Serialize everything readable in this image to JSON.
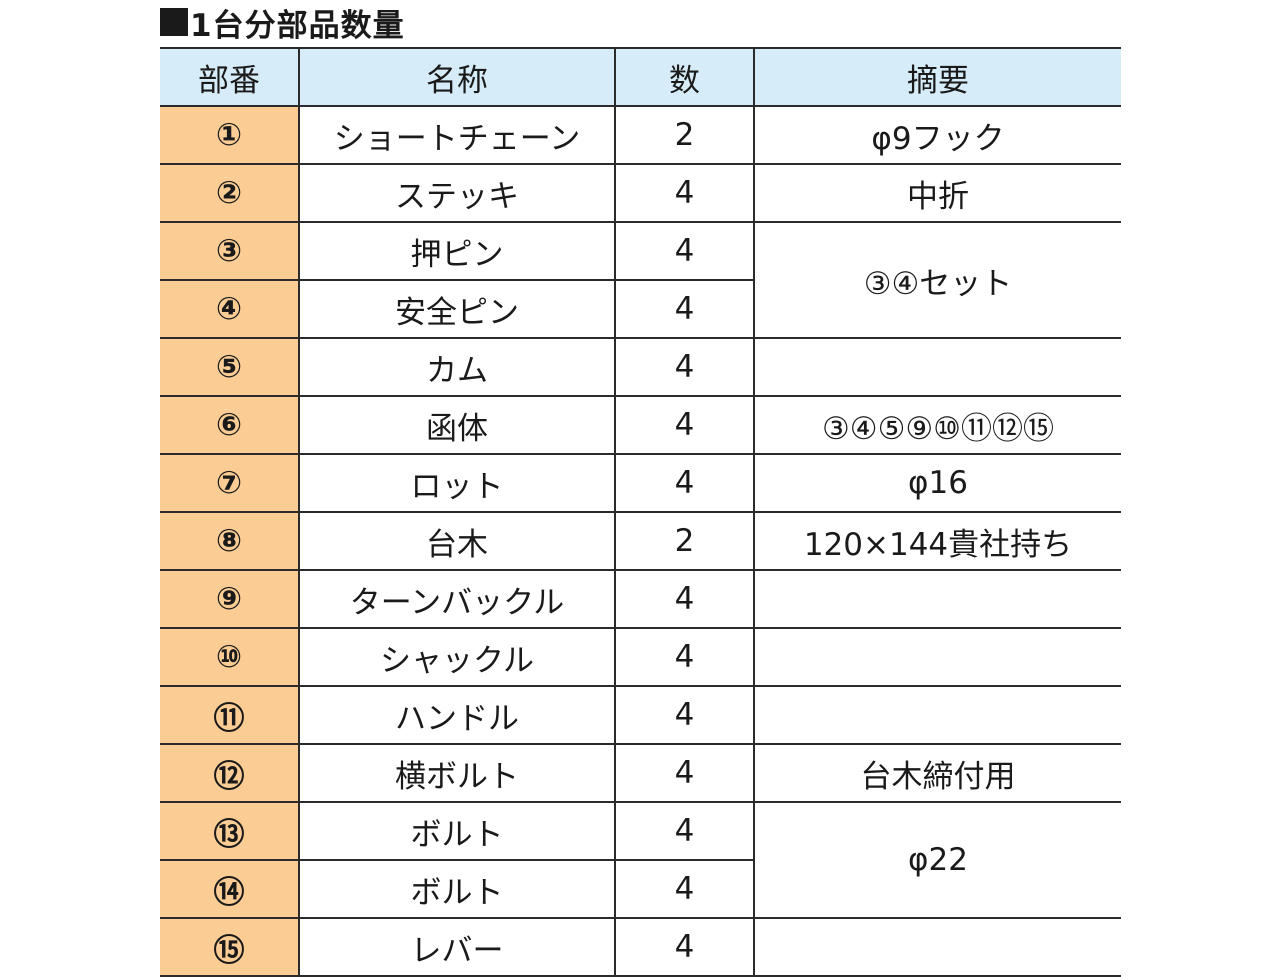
{
  "title": "1台分部品数量",
  "headers": {
    "no": "部番",
    "name": "名称",
    "qty": "数",
    "note": "摘要"
  },
  "rows": [
    {
      "no": "①",
      "name": "ショートチェーン",
      "qty": "2",
      "note": "φ9フック"
    },
    {
      "no": "②",
      "name": "ステッキ",
      "qty": "4",
      "note": "中折"
    },
    {
      "no": "③",
      "name": "押ピン",
      "qty": "4",
      "note": "③④セット"
    },
    {
      "no": "④",
      "name": "安全ピン",
      "qty": "4",
      "note": ""
    },
    {
      "no": "⑤",
      "name": "カム",
      "qty": "4",
      "note": ""
    },
    {
      "no": "⑥",
      "name": "函体",
      "qty": "4",
      "note": "③④⑤⑨⑩⑪⑫⑮"
    },
    {
      "no": "⑦",
      "name": "ロット",
      "qty": "4",
      "note": "φ16"
    },
    {
      "no": "⑧",
      "name": "台木",
      "qty": "2",
      "note": "120×144貴社持ち"
    },
    {
      "no": "⑨",
      "name": "ターンバックル",
      "qty": "4",
      "note": ""
    },
    {
      "no": "⑩",
      "name": "シャックル",
      "qty": "4",
      "note": ""
    },
    {
      "no": "⑪",
      "name": "ハンドル",
      "qty": "4",
      "note": ""
    },
    {
      "no": "⑫",
      "name": "横ボルト",
      "qty": "4",
      "note": "台木締付用"
    },
    {
      "no": "⑬",
      "name": "ボルト",
      "qty": "4",
      "note": "φ22"
    },
    {
      "no": "⑭",
      "name": "ボルト",
      "qty": "4",
      "note": ""
    },
    {
      "no": "⑮",
      "name": "レバー",
      "qty": "4",
      "note": ""
    }
  ]
}
